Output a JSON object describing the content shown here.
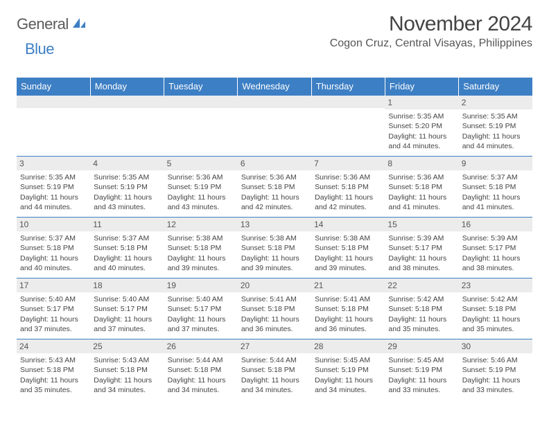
{
  "logo": {
    "word1": "General",
    "word2": "Blue"
  },
  "title": "November 2024",
  "location": "Cogon Cruz, Central Visayas, Philippines",
  "colors": {
    "accent": "#3d7fc4",
    "stripe": "#ececec",
    "text": "#444444"
  },
  "typography": {
    "title_fontsize": 30,
    "location_fontsize": 16,
    "header_fontsize": 13,
    "cell_fontsize": 10.5
  },
  "day_headers": [
    "Sunday",
    "Monday",
    "Tuesday",
    "Wednesday",
    "Thursday",
    "Friday",
    "Saturday"
  ],
  "weeks": [
    [
      null,
      null,
      null,
      null,
      null,
      {
        "n": "1",
        "sr": "Sunrise: 5:35 AM",
        "ss": "Sunset: 5:20 PM",
        "d1": "Daylight: 11 hours",
        "d2": "and 44 minutes."
      },
      {
        "n": "2",
        "sr": "Sunrise: 5:35 AM",
        "ss": "Sunset: 5:19 PM",
        "d1": "Daylight: 11 hours",
        "d2": "and 44 minutes."
      }
    ],
    [
      {
        "n": "3",
        "sr": "Sunrise: 5:35 AM",
        "ss": "Sunset: 5:19 PM",
        "d1": "Daylight: 11 hours",
        "d2": "and 44 minutes."
      },
      {
        "n": "4",
        "sr": "Sunrise: 5:35 AM",
        "ss": "Sunset: 5:19 PM",
        "d1": "Daylight: 11 hours",
        "d2": "and 43 minutes."
      },
      {
        "n": "5",
        "sr": "Sunrise: 5:36 AM",
        "ss": "Sunset: 5:19 PM",
        "d1": "Daylight: 11 hours",
        "d2": "and 43 minutes."
      },
      {
        "n": "6",
        "sr": "Sunrise: 5:36 AM",
        "ss": "Sunset: 5:18 PM",
        "d1": "Daylight: 11 hours",
        "d2": "and 42 minutes."
      },
      {
        "n": "7",
        "sr": "Sunrise: 5:36 AM",
        "ss": "Sunset: 5:18 PM",
        "d1": "Daylight: 11 hours",
        "d2": "and 42 minutes."
      },
      {
        "n": "8",
        "sr": "Sunrise: 5:36 AM",
        "ss": "Sunset: 5:18 PM",
        "d1": "Daylight: 11 hours",
        "d2": "and 41 minutes."
      },
      {
        "n": "9",
        "sr": "Sunrise: 5:37 AM",
        "ss": "Sunset: 5:18 PM",
        "d1": "Daylight: 11 hours",
        "d2": "and 41 minutes."
      }
    ],
    [
      {
        "n": "10",
        "sr": "Sunrise: 5:37 AM",
        "ss": "Sunset: 5:18 PM",
        "d1": "Daylight: 11 hours",
        "d2": "and 40 minutes."
      },
      {
        "n": "11",
        "sr": "Sunrise: 5:37 AM",
        "ss": "Sunset: 5:18 PM",
        "d1": "Daylight: 11 hours",
        "d2": "and 40 minutes."
      },
      {
        "n": "12",
        "sr": "Sunrise: 5:38 AM",
        "ss": "Sunset: 5:18 PM",
        "d1": "Daylight: 11 hours",
        "d2": "and 39 minutes."
      },
      {
        "n": "13",
        "sr": "Sunrise: 5:38 AM",
        "ss": "Sunset: 5:18 PM",
        "d1": "Daylight: 11 hours",
        "d2": "and 39 minutes."
      },
      {
        "n": "14",
        "sr": "Sunrise: 5:38 AM",
        "ss": "Sunset: 5:18 PM",
        "d1": "Daylight: 11 hours",
        "d2": "and 39 minutes."
      },
      {
        "n": "15",
        "sr": "Sunrise: 5:39 AM",
        "ss": "Sunset: 5:17 PM",
        "d1": "Daylight: 11 hours",
        "d2": "and 38 minutes."
      },
      {
        "n": "16",
        "sr": "Sunrise: 5:39 AM",
        "ss": "Sunset: 5:17 PM",
        "d1": "Daylight: 11 hours",
        "d2": "and 38 minutes."
      }
    ],
    [
      {
        "n": "17",
        "sr": "Sunrise: 5:40 AM",
        "ss": "Sunset: 5:17 PM",
        "d1": "Daylight: 11 hours",
        "d2": "and 37 minutes."
      },
      {
        "n": "18",
        "sr": "Sunrise: 5:40 AM",
        "ss": "Sunset: 5:17 PM",
        "d1": "Daylight: 11 hours",
        "d2": "and 37 minutes."
      },
      {
        "n": "19",
        "sr": "Sunrise: 5:40 AM",
        "ss": "Sunset: 5:17 PM",
        "d1": "Daylight: 11 hours",
        "d2": "and 37 minutes."
      },
      {
        "n": "20",
        "sr": "Sunrise: 5:41 AM",
        "ss": "Sunset: 5:18 PM",
        "d1": "Daylight: 11 hours",
        "d2": "and 36 minutes."
      },
      {
        "n": "21",
        "sr": "Sunrise: 5:41 AM",
        "ss": "Sunset: 5:18 PM",
        "d1": "Daylight: 11 hours",
        "d2": "and 36 minutes."
      },
      {
        "n": "22",
        "sr": "Sunrise: 5:42 AM",
        "ss": "Sunset: 5:18 PM",
        "d1": "Daylight: 11 hours",
        "d2": "and 35 minutes."
      },
      {
        "n": "23",
        "sr": "Sunrise: 5:42 AM",
        "ss": "Sunset: 5:18 PM",
        "d1": "Daylight: 11 hours",
        "d2": "and 35 minutes."
      }
    ],
    [
      {
        "n": "24",
        "sr": "Sunrise: 5:43 AM",
        "ss": "Sunset: 5:18 PM",
        "d1": "Daylight: 11 hours",
        "d2": "and 35 minutes."
      },
      {
        "n": "25",
        "sr": "Sunrise: 5:43 AM",
        "ss": "Sunset: 5:18 PM",
        "d1": "Daylight: 11 hours",
        "d2": "and 34 minutes."
      },
      {
        "n": "26",
        "sr": "Sunrise: 5:44 AM",
        "ss": "Sunset: 5:18 PM",
        "d1": "Daylight: 11 hours",
        "d2": "and 34 minutes."
      },
      {
        "n": "27",
        "sr": "Sunrise: 5:44 AM",
        "ss": "Sunset: 5:18 PM",
        "d1": "Daylight: 11 hours",
        "d2": "and 34 minutes."
      },
      {
        "n": "28",
        "sr": "Sunrise: 5:45 AM",
        "ss": "Sunset: 5:19 PM",
        "d1": "Daylight: 11 hours",
        "d2": "and 34 minutes."
      },
      {
        "n": "29",
        "sr": "Sunrise: 5:45 AM",
        "ss": "Sunset: 5:19 PM",
        "d1": "Daylight: 11 hours",
        "d2": "and 33 minutes."
      },
      {
        "n": "30",
        "sr": "Sunrise: 5:46 AM",
        "ss": "Sunset: 5:19 PM",
        "d1": "Daylight: 11 hours",
        "d2": "and 33 minutes."
      }
    ]
  ]
}
